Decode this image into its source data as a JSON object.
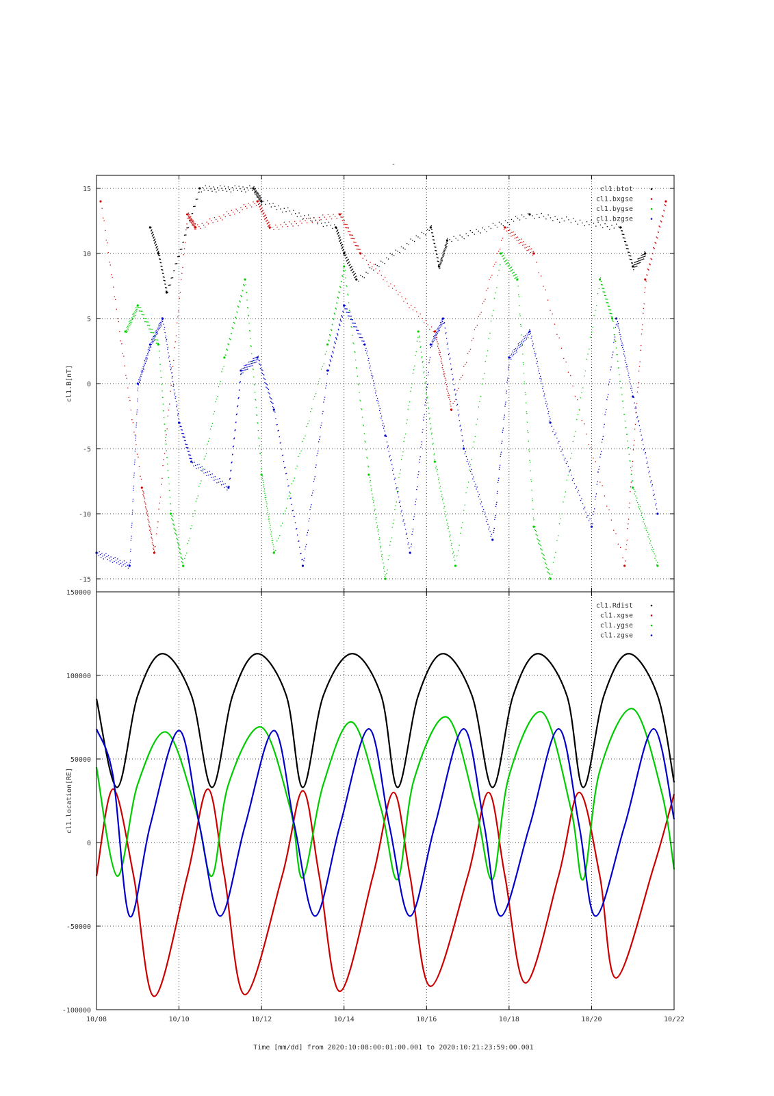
{
  "title_mark": "-",
  "xlabel": "Time [mm/dd]  from 2020:10:08:00:01:00.001  to  2020:10:21:23:59:00.001",
  "x_ticks": [
    "10/08",
    "10/10",
    "10/12",
    "10/14",
    "10/16",
    "10/18",
    "10/20",
    "10/22"
  ],
  "colors": {
    "black": "#000000",
    "red": "#cc0000",
    "green": "#00cc00",
    "blue": "#0000cc"
  },
  "chart_data": [
    {
      "type": "scatter",
      "ylabel": "cl1.B[nT]",
      "ylim": [
        -16,
        16
      ],
      "y_ticks": [
        "15",
        "10",
        "5",
        "0",
        "-5",
        "-10",
        "-15"
      ],
      "y_tick_values": [
        15,
        10,
        5,
        0,
        -5,
        -10,
        -15
      ],
      "xlim": [
        "10/08",
        "10/22"
      ],
      "grid": true,
      "legend_position": "top-right",
      "series": [
        {
          "name": "cl1.btot",
          "color": "#000000",
          "x": [
            "10/09.3",
            "10/09.5",
            "10/09.7",
            "10/10.5",
            "10/11.8",
            "10/12.0",
            "10/13.8",
            "10/14.0",
            "10/14.3",
            "10/16.1",
            "10/16.3",
            "10/16.5",
            "10/18.5",
            "10/20.7",
            "10/21.0",
            "10/21.3"
          ],
          "values": [
            12,
            10,
            7,
            15,
            15,
            14,
            12,
            10,
            8,
            12,
            9,
            11,
            13,
            12,
            9,
            10
          ]
        },
        {
          "name": "cl1.bxgse",
          "color": "#cc0000",
          "x": [
            "10/08.1",
            "10/09.1",
            "10/09.4",
            "10/10.2",
            "10/10.4",
            "10/11.9",
            "10/12.2",
            "10/13.9",
            "10/14.4",
            "10/16.2",
            "10/16.6",
            "10/17.9",
            "10/18.6",
            "10/20.8",
            "10/21.3",
            "10/21.8"
          ],
          "values": [
            14,
            -8,
            -13,
            13,
            12,
            14,
            12,
            13,
            10,
            4,
            -2,
            12,
            10,
            -14,
            8,
            14
          ]
        },
        {
          "name": "cl1.bygse",
          "color": "#00cc00",
          "x": [
            "10/08.7",
            "10/09.0",
            "10/09.5",
            "10/09.8",
            "10/10.1",
            "10/11.1",
            "10/11.6",
            "10/12.0",
            "10/12.3",
            "10/13.6",
            "10/14.0",
            "10/14.6",
            "10/15.0",
            "10/15.8",
            "10/16.2",
            "10/16.7",
            "10/17.8",
            "10/18.2",
            "10/18.6",
            "10/19.0",
            "10/20.2",
            "10/20.5",
            "10/21.0",
            "10/21.6"
          ],
          "values": [
            4,
            6,
            3,
            -10,
            -14,
            2,
            8,
            -7,
            -13,
            3,
            9,
            -7,
            -15,
            4,
            -6,
            -14,
            10,
            8,
            -11,
            -15,
            8,
            5,
            -8,
            -14
          ]
        },
        {
          "name": "cl1.bzgse",
          "color": "#0000cc",
          "x": [
            "10/08.0",
            "10/08.8",
            "10/09.0",
            "10/09.3",
            "10/09.6",
            "10/10.0",
            "10/10.3",
            "10/11.2",
            "10/11.5",
            "10/11.9",
            "10/12.3",
            "10/13.0",
            "10/13.6",
            "10/14.0",
            "10/14.5",
            "10/15.0",
            "10/15.6",
            "10/16.1",
            "10/16.4",
            "10/16.9",
            "10/17.6",
            "10/18.0",
            "10/18.5",
            "10/19.0",
            "10/20.0",
            "10/20.6",
            "10/21.0",
            "10/21.6"
          ],
          "values": [
            -13,
            -14,
            0,
            3,
            5,
            -3,
            -6,
            -8,
            1,
            2,
            -2,
            -14,
            1,
            6,
            3,
            -4,
            -13,
            3,
            5,
            -5,
            -12,
            2,
            4,
            -3,
            -11,
            5,
            -1,
            -10
          ]
        }
      ]
    },
    {
      "type": "line",
      "ylabel": "cl1.location[RE]",
      "ylim": [
        -100000,
        150000
      ],
      "y_ticks": [
        "150000",
        "100000",
        "50000",
        "0",
        "-50000",
        "-100000"
      ],
      "y_tick_values": [
        150000,
        100000,
        50000,
        0,
        -50000,
        -100000
      ],
      "xlim": [
        "10/08",
        "10/22"
      ],
      "grid": true,
      "legend_position": "top-right",
      "series": [
        {
          "name": "cl1.Rdist",
          "color": "#000000",
          "x": [
            "10/08.0",
            "10/08.5",
            "10/09.0",
            "10/09.6",
            "10/10.3",
            "10/10.8",
            "10/11.3",
            "10/11.9",
            "10/12.6",
            "10/13.0",
            "10/13.5",
            "10/14.2",
            "10/14.9",
            "10/15.3",
            "10/15.8",
            "10/16.4",
            "10/17.1",
            "10/17.6",
            "10/18.1",
            "10/18.7",
            "10/19.4",
            "10/19.8",
            "10/20.3",
            "10/20.9",
            "10/21.6",
            "10/22.0"
          ],
          "values": [
            86000,
            33000,
            88000,
            113000,
            88000,
            33000,
            88000,
            113000,
            88000,
            33000,
            88000,
            113000,
            88000,
            33000,
            88000,
            113000,
            88000,
            33000,
            88000,
            113000,
            88000,
            33000,
            88000,
            113000,
            88000,
            36000
          ]
        },
        {
          "name": "cl1.xgse",
          "color": "#cc0000",
          "x": [
            "10/08.0",
            "10/08.4",
            "10/08.9",
            "10/09.4",
            "10/10.2",
            "10/10.7",
            "10/11.1",
            "10/11.6",
            "10/12.5",
            "10/13.0",
            "10/13.4",
            "10/13.9",
            "10/14.7",
            "10/15.2",
            "10/15.6",
            "10/16.1",
            "10/17.0",
            "10/17.5",
            "10/17.9",
            "10/18.4",
            "10/19.2",
            "10/19.7",
            "10/20.2",
            "10/20.6",
            "10/21.5",
            "10/22.0"
          ],
          "values": [
            -20000,
            32000,
            -20000,
            -92000,
            -20000,
            32000,
            -20000,
            -91000,
            -20000,
            31000,
            -20000,
            -89000,
            -20000,
            30000,
            -20000,
            -86000,
            -20000,
            30000,
            -20000,
            -84000,
            -20000,
            30000,
            -20000,
            -81000,
            -15000,
            29000
          ]
        },
        {
          "name": "cl1.ygse",
          "color": "#00cc00",
          "x": [
            "10/08.0",
            "10/08.5",
            "10/09.0",
            "10/09.7",
            "10/10.4",
            "10/10.8",
            "10/11.2",
            "10/12.0",
            "10/12.7",
            "10/13.0",
            "10/13.5",
            "10/14.2",
            "10/14.9",
            "10/15.3",
            "10/15.7",
            "10/16.5",
            "10/17.2",
            "10/17.6",
            "10/18.0",
            "10/18.8",
            "10/19.5",
            "10/19.8",
            "10/20.2",
            "10/21.0",
            "10/21.7",
            "10/22.0"
          ],
          "values": [
            45000,
            -20000,
            35000,
            66000,
            20000,
            -20000,
            35000,
            69000,
            20000,
            -21000,
            35000,
            72000,
            20000,
            -22000,
            38000,
            75000,
            20000,
            -22000,
            40000,
            78000,
            20000,
            -22000,
            43000,
            80000,
            30000,
            -16000
          ]
        },
        {
          "name": "cl1.zgse",
          "color": "#0000cc",
          "x": [
            "10/08.0",
            "10/08.4",
            "10/08.8",
            "10/09.3",
            "10/10.0",
            "10/10.5",
            "10/11.0",
            "10/11.6",
            "10/12.3",
            "10/12.8",
            "10/13.3",
            "10/13.9",
            "10/14.6",
            "10/15.1",
            "10/15.6",
            "10/16.2",
            "10/16.9",
            "10/17.4",
            "10/17.8",
            "10/18.5",
            "10/19.2",
            "10/19.7",
            "10/20.1",
            "10/20.8",
            "10/21.5",
            "10/22.0"
          ],
          "values": [
            68000,
            40000,
            -44000,
            10000,
            67000,
            10000,
            -44000,
            10000,
            67000,
            10000,
            -44000,
            10000,
            68000,
            10000,
            -44000,
            10000,
            68000,
            10000,
            -44000,
            10000,
            68000,
            10000,
            -44000,
            10000,
            68000,
            14000
          ]
        }
      ]
    }
  ]
}
